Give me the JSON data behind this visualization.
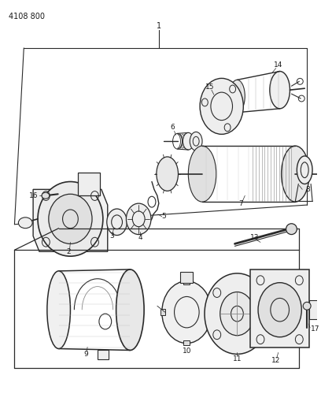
{
  "title": "4108 800",
  "bg": "#ffffff",
  "lc": "#2a2a2a",
  "fig_w": 4.08,
  "fig_h": 5.33,
  "dpi": 100
}
